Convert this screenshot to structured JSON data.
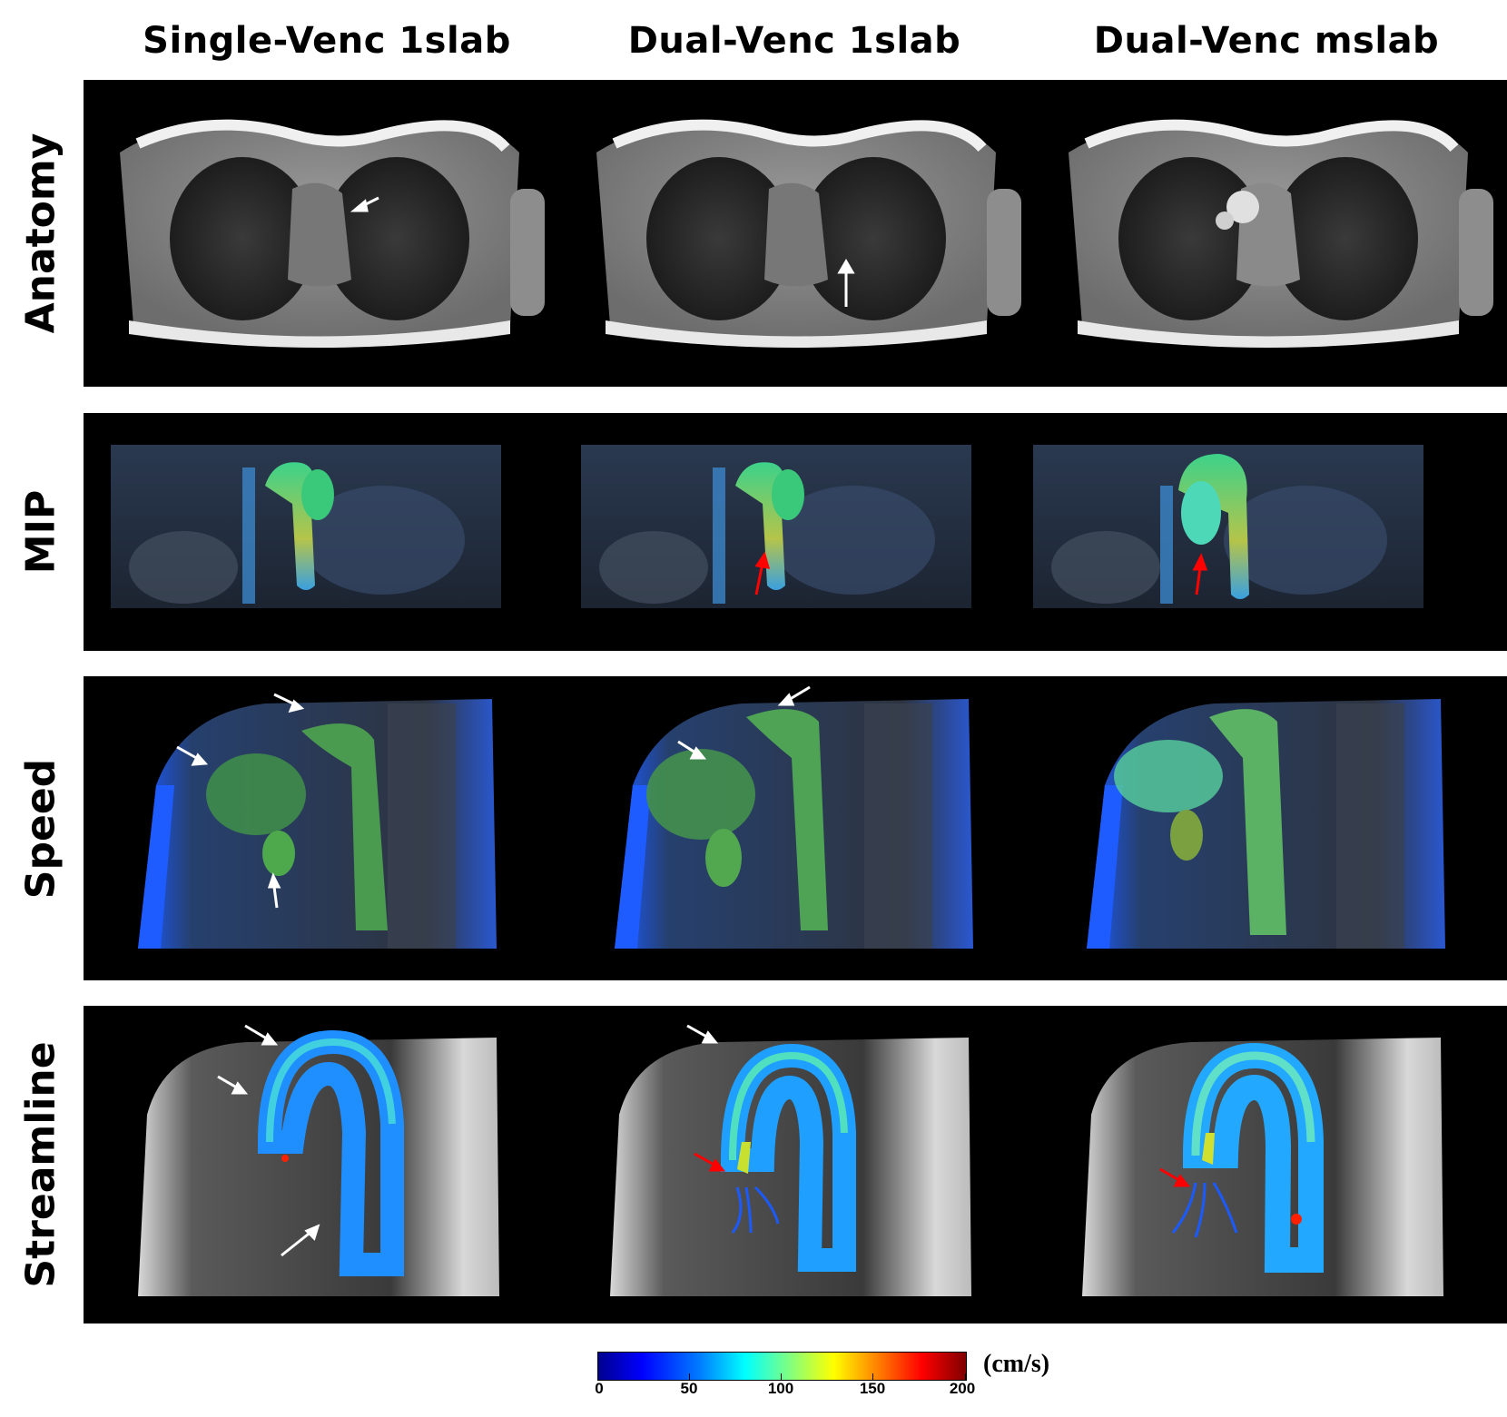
{
  "columns": [
    "Single-Venc 1slab",
    "Dual-Venc 1slab",
    "Dual-Venc mslab"
  ],
  "rows": [
    "Anatomy",
    "MIP",
    "Speed",
    "Streamline"
  ],
  "colorbar": {
    "ticks": [
      "0",
      "50",
      "100",
      "150",
      "200"
    ],
    "unit": "(cm/s)",
    "range": [
      0,
      200
    ],
    "colormap": "jet"
  },
  "colors": {
    "panel_bg": "#000000",
    "arrow_white": "#ffffff",
    "arrow_red": "#ff0000"
  }
}
